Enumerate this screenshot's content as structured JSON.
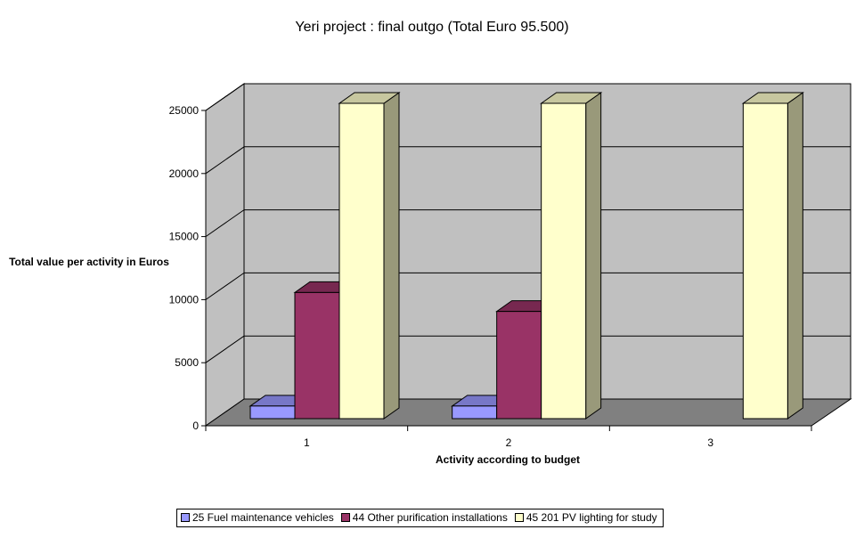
{
  "chart_data": {
    "type": "bar",
    "title": "Yeri project : final outgo (Total Euro 95.500)",
    "xlabel": "Activity according to budget",
    "ylabel": "Total value per activity in Euros",
    "categories": [
      "1",
      "2",
      "3"
    ],
    "ylim": [
      0,
      25000
    ],
    "yticks": [
      0,
      5000,
      10000,
      15000,
      20000,
      25000
    ],
    "grid": true,
    "three_d": true,
    "legend_position": "bottom",
    "series": [
      {
        "name": "25 Fuel maintenance vehicles",
        "color": "#9999ff",
        "values": [
          1000,
          1000,
          0
        ]
      },
      {
        "name": "44 Other purification installations",
        "color": "#993366",
        "values": [
          10000,
          8500,
          0
        ]
      },
      {
        "name": "45 201 PV lighting for study",
        "color": "#ffffcc",
        "values": [
          25000,
          25000,
          25000
        ]
      }
    ]
  },
  "colors": {
    "walls": "#c0c0c0",
    "floor": "#808080"
  }
}
